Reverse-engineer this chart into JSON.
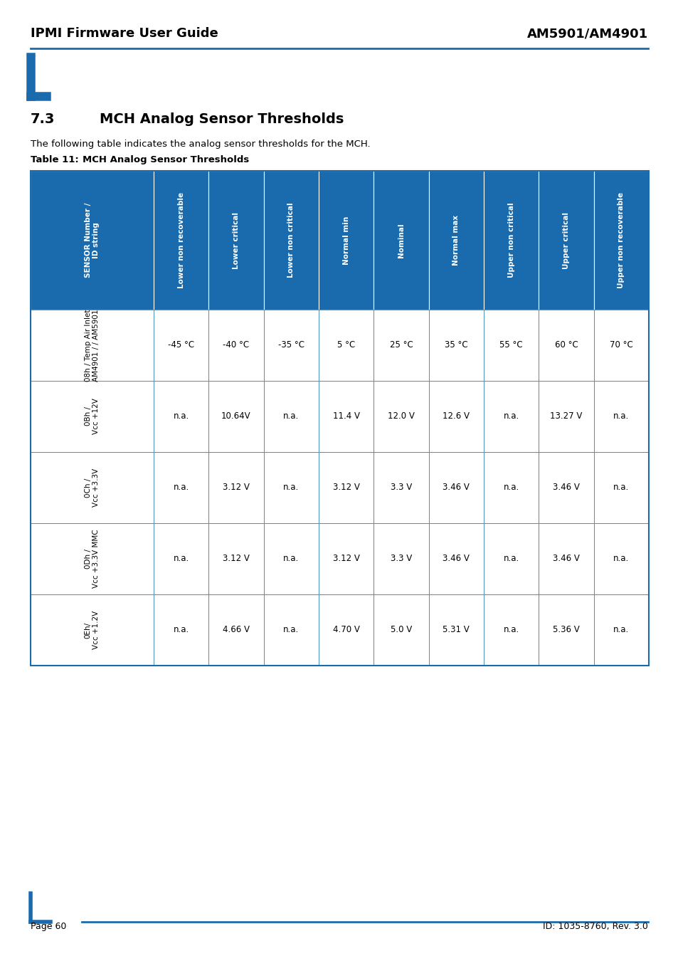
{
  "page_title_left": "IPMI Firmware User Guide",
  "page_title_right": "AM5901/AM4901",
  "section": "7.3",
  "section_title": "MCH Analog Sensor Thresholds",
  "description": "The following table indicates the analog sensor thresholds for the MCH.",
  "table_label": "Table 11:",
  "table_label2": "MCH Analog Sensor Thresholds",
  "header_bg": "#1A6BAD",
  "header_text_color": "#FFFFFF",
  "col_headers": [
    "SENSOR Number /\nID string",
    "Lower non recoverable",
    "Lower critical",
    "Lower non critical",
    "Normal min",
    "Nominal",
    "Normal max",
    "Upper non critical",
    "Upper critical",
    "Upper non recoverable"
  ],
  "rows": [
    [
      "08h / Temp Air Inlet\nAM4901 / / AM5901",
      "-45 °C",
      "-40 °C",
      "-35 °C",
      "5 °C",
      "25 °C",
      "35 °C",
      "55 °C",
      "60 °C",
      "70 °C"
    ],
    [
      "0Bh /\nVcc +12V",
      "n.a.",
      "10.64V",
      "n.a.",
      "11.4 V",
      "12.0 V",
      "12.6 V",
      "n.a.",
      "13.27 V",
      "n.a."
    ],
    [
      "0Ch /\nVcc +3.3V",
      "n.a.",
      "3.12 V",
      "n.a.",
      "3.12 V",
      "3.3 V",
      "3.46 V",
      "n.a.",
      "3.46 V",
      "n.a."
    ],
    [
      "0Dh /\nVcc +3.3V MMC",
      "n.a.",
      "3.12 V",
      "n.a.",
      "3.12 V",
      "3.3 V",
      "3.46 V",
      "n.a.",
      "3.46 V",
      "n.a."
    ],
    [
      "0Eh/\nVcc +1.2V",
      "n.a.",
      "4.66 V",
      "n.a.",
      "4.70 V",
      "5.0 V",
      "5.31 V",
      "n.a.",
      "5.36 V",
      "n.a."
    ]
  ],
  "col_widths_rel": [
    1.9,
    0.85,
    0.85,
    0.85,
    0.85,
    0.85,
    0.85,
    0.85,
    0.85,
    0.85
  ],
  "accent_color": "#1A6BAD",
  "border_color": "#4A90C4",
  "page_footer_left": "Page 60",
  "page_footer_right": "ID: 1035-8760, Rev. 3.0",
  "background_color": "#FFFFFF"
}
